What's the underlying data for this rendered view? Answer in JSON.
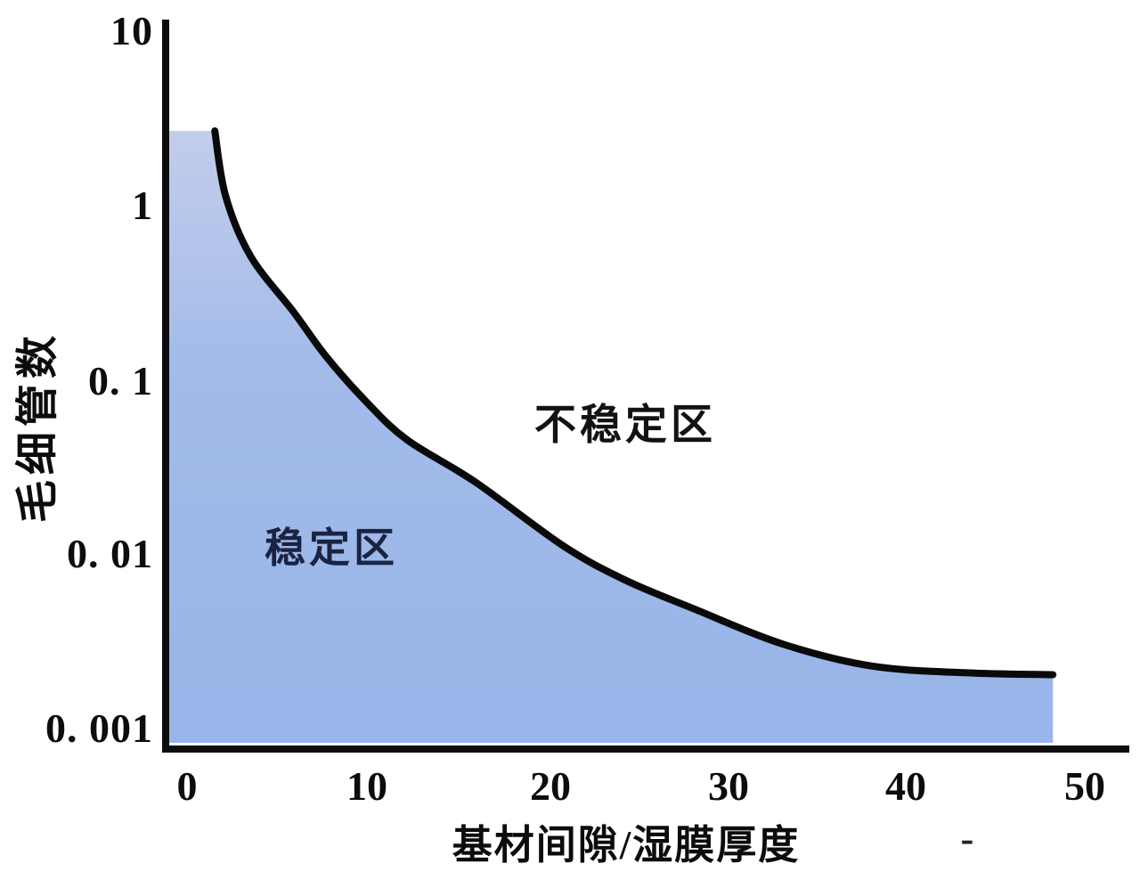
{
  "chart_data": {
    "type": "area",
    "title": "",
    "xlabel": "基材间隙/湿膜厚度",
    "ylabel": "毛细管数",
    "x_axis": {
      "min": 0,
      "max": 50,
      "ticks": [
        0,
        10,
        20,
        30,
        40,
        50
      ],
      "tick_labels": [
        "0",
        "10",
        "20",
        "30",
        "40",
        "50"
      ],
      "scale": "linear"
    },
    "y_axis": {
      "min": 0.001,
      "max": 10,
      "ticks": [
        10,
        1,
        0.1,
        0.01,
        0.001
      ],
      "tick_labels": [
        "10",
        "1",
        "0. 1",
        "0. 01",
        "0. 001"
      ],
      "scale": "log"
    },
    "grid": false,
    "legend": "none",
    "regions": [
      {
        "label": "稳定区",
        "description": "shaded blue area under boundary curve"
      },
      {
        "label": "不稳定区",
        "description": "white area above boundary curve"
      }
    ],
    "boundary_curve": {
      "name": "stability-boundary",
      "x": [
        1.5,
        2.1,
        3.5,
        5.9,
        7.7,
        9.9,
        12.2,
        16.0,
        20.9,
        24.3,
        28.2,
        33.2,
        38.2,
        43.6,
        48.2
      ],
      "ca": [
        2.7,
        1.15,
        0.52,
        0.25,
        0.14,
        0.078,
        0.047,
        0.027,
        0.0117,
        0.0075,
        0.0051,
        0.0032,
        0.0024,
        0.0022,
        0.00215
      ]
    },
    "colors": {
      "fill_top": "#c3cdec",
      "fill_mid": "#a3bbe9",
      "fill_bottom": "#97b5e9",
      "curve": "#0a0a0a",
      "axis": "#0d0d10"
    }
  },
  "labels": {
    "stable_region": "稳定区",
    "unstable_region": "不稳定区",
    "stray_mark": "-"
  }
}
